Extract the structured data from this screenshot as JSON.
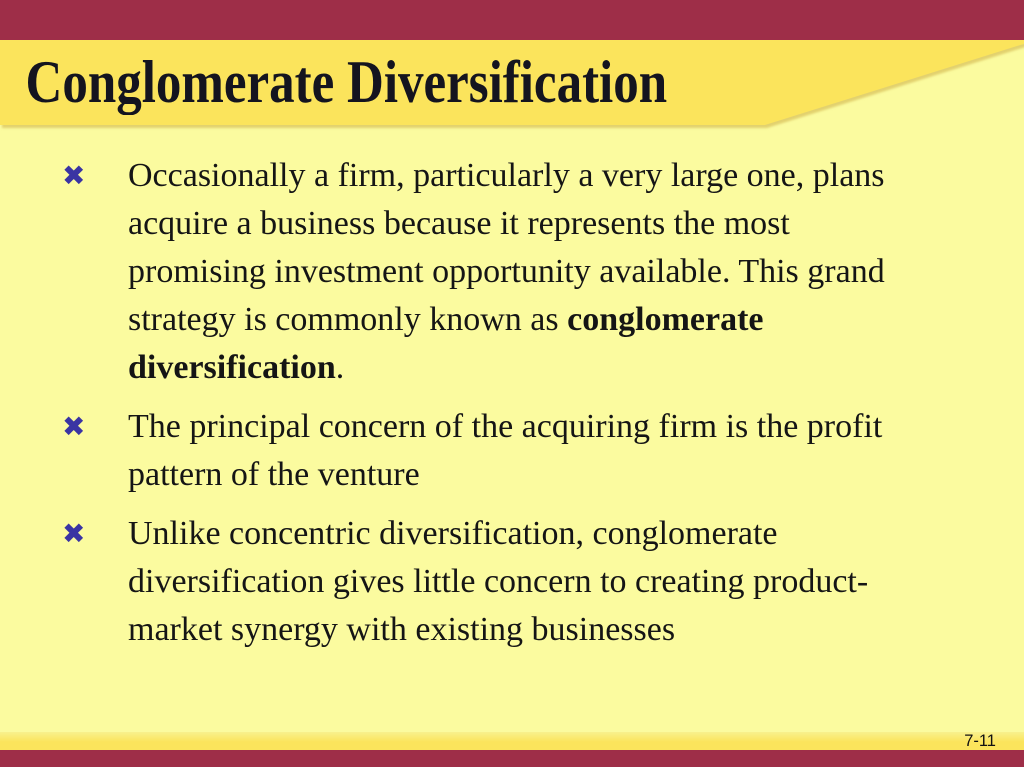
{
  "slide": {
    "title": "Conglomerate Diversification",
    "bullet_marker": "✖",
    "bullets": [
      {
        "segments": [
          {
            "text": "Occasionally a firm, particularly a very large one, plans acquire a business because it represents the most promising investment opportunity available. This grand strategy is commonly known as ",
            "bold": false
          },
          {
            "text": "conglomerate diversification",
            "bold": true
          },
          {
            "text": ".",
            "bold": false
          }
        ]
      },
      {
        "segments": [
          {
            "text": "The principal concern of the acquiring firm is the profit pattern of the venture",
            "bold": false
          }
        ]
      },
      {
        "segments": [
          {
            "text": "Unlike concentric diversification, conglomerate diversification gives little concern to creating product-market synergy with existing businesses",
            "bold": false
          }
        ]
      }
    ],
    "page_number": "7-11",
    "colors": {
      "accent_maroon": "#9E2E48",
      "title_band_yellow": "#FBE45C",
      "body_yellow": "#FBFB9F",
      "bullet_blue": "#3A34A3",
      "title_text": "#14141F",
      "body_text": "#151515"
    }
  }
}
